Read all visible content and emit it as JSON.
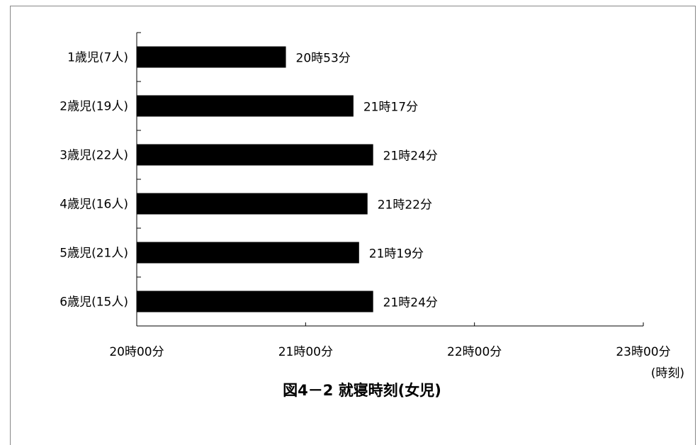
{
  "chart_data": {
    "type": "bar",
    "orientation": "horizontal",
    "title": "図4－2 就寝時刻(女児)",
    "xlabel": "(時刻)",
    "ylabel": "",
    "categories": [
      "1歳児(7人)",
      "2歳児(19人)",
      "3歳児(22人)",
      "4歳児(16人)",
      "5歳児(21人)",
      "6歳児(15人)"
    ],
    "values_minutes": [
      1253,
      1277,
      1284,
      1282,
      1279,
      1284
    ],
    "data_labels": [
      "20時53分",
      "21時17分",
      "21時24分",
      "21時22分",
      "21時19分",
      "21時24分"
    ],
    "x_ticks_minutes": [
      1200,
      1260,
      1320,
      1380
    ],
    "x_tick_labels": [
      "20時00分",
      "21時00分",
      "22時00分",
      "23時00分"
    ],
    "xlim_minutes": [
      1200,
      1380
    ],
    "bar_color": "#000000",
    "grid": false,
    "legend": "none"
  }
}
